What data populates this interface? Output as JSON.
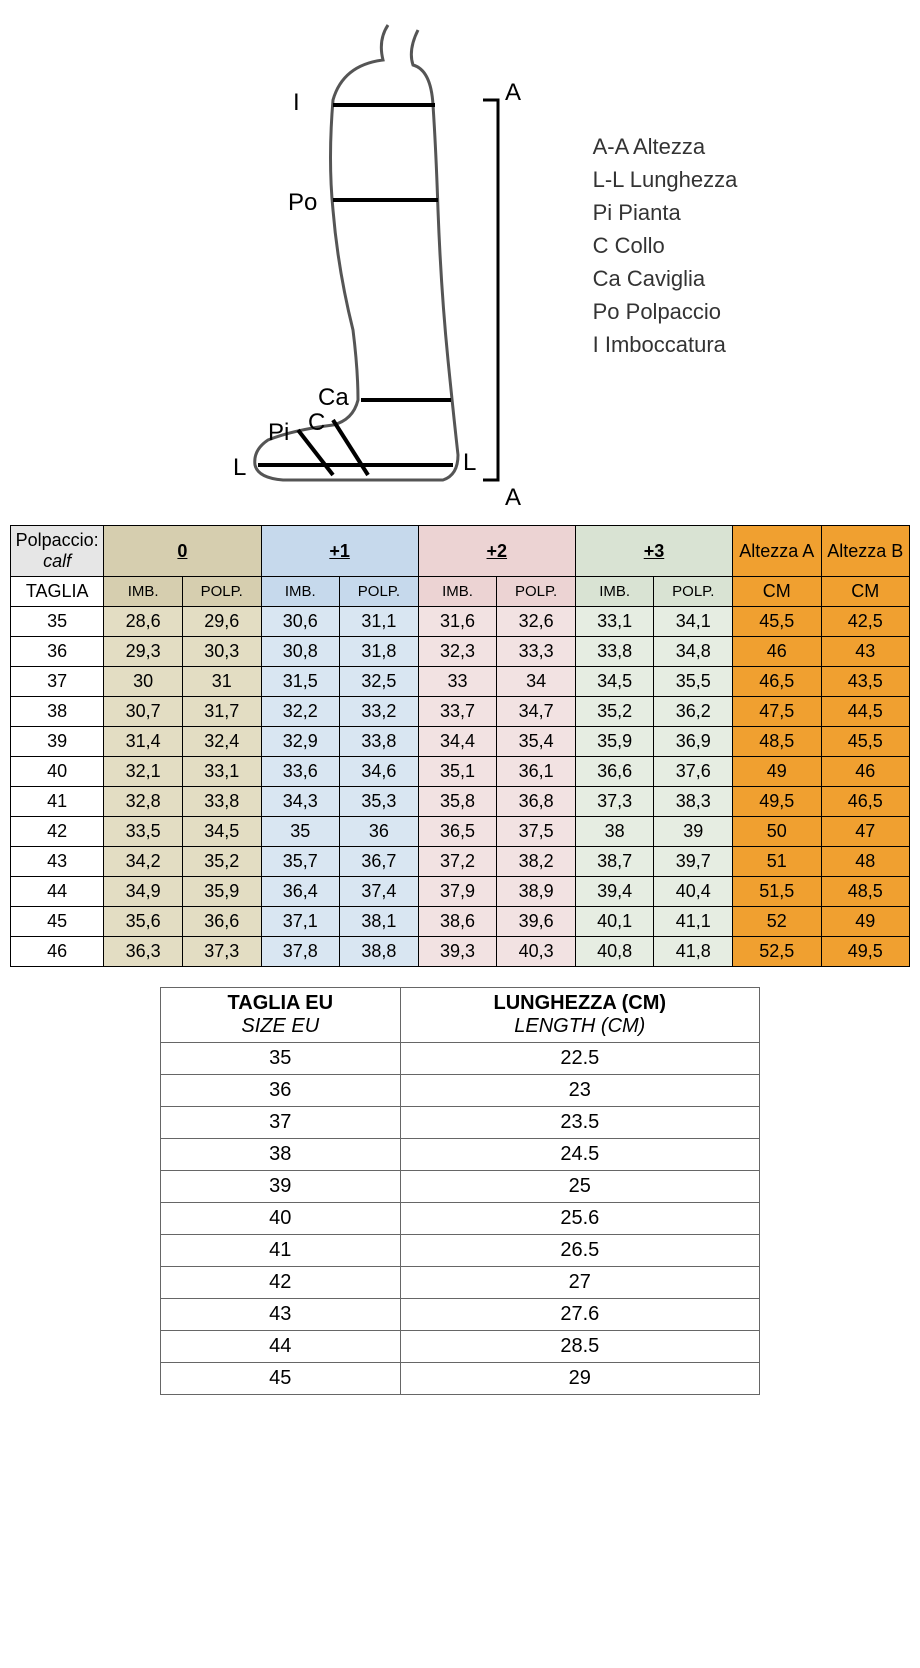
{
  "diagram": {
    "labels": {
      "I": "I",
      "A_top": "A",
      "Po": "Po",
      "Ca": "Ca",
      "C": "C",
      "Pi": "Pi",
      "L_left": "L",
      "L_right": "L",
      "A_bottom": "A"
    },
    "legend": [
      "A-A Altezza",
      "L-L Lunghezza",
      "Pi Pianta",
      "C Collo",
      "Ca Caviglia",
      "Po Polpaccio",
      "I Imboccatura"
    ]
  },
  "mainTable": {
    "header": {
      "polpaccio": "Polpaccio:",
      "calf": "calf",
      "taglia": "TAGLIA",
      "groups": [
        "0",
        "+1",
        "+2",
        "+3"
      ],
      "altezzaA": "Altezza A",
      "altezzaB": "Altezza B",
      "imb": "IMB.",
      "polp": "POLP.",
      "cm": "CM"
    },
    "colors": {
      "groupBg": [
        "#d6ceaf",
        "#c6d9ec",
        "#ecd3d3",
        "#d9e3d3"
      ],
      "cellBg": [
        "#e3ddc3",
        "#d9e6f2",
        "#f2e2e2",
        "#e6ede2"
      ],
      "orange": "#f0a030",
      "gray": "#e6e6e6"
    },
    "rows": [
      {
        "size": "35",
        "v": [
          "28,6",
          "29,6",
          "30,6",
          "31,1",
          "31,6",
          "32,6",
          "33,1",
          "34,1"
        ],
        "a": "45,5",
        "b": "42,5"
      },
      {
        "size": "36",
        "v": [
          "29,3",
          "30,3",
          "30,8",
          "31,8",
          "32,3",
          "33,3",
          "33,8",
          "34,8"
        ],
        "a": "46",
        "b": "43"
      },
      {
        "size": "37",
        "v": [
          "30",
          "31",
          "31,5",
          "32,5",
          "33",
          "34",
          "34,5",
          "35,5"
        ],
        "a": "46,5",
        "b": "43,5"
      },
      {
        "size": "38",
        "v": [
          "30,7",
          "31,7",
          "32,2",
          "33,2",
          "33,7",
          "34,7",
          "35,2",
          "36,2"
        ],
        "a": "47,5",
        "b": "44,5"
      },
      {
        "size": "39",
        "v": [
          "31,4",
          "32,4",
          "32,9",
          "33,8",
          "34,4",
          "35,4",
          "35,9",
          "36,9"
        ],
        "a": "48,5",
        "b": "45,5"
      },
      {
        "size": "40",
        "v": [
          "32,1",
          "33,1",
          "33,6",
          "34,6",
          "35,1",
          "36,1",
          "36,6",
          "37,6"
        ],
        "a": "49",
        "b": "46"
      },
      {
        "size": "41",
        "v": [
          "32,8",
          "33,8",
          "34,3",
          "35,3",
          "35,8",
          "36,8",
          "37,3",
          "38,3"
        ],
        "a": "49,5",
        "b": "46,5"
      },
      {
        "size": "42",
        "v": [
          "33,5",
          "34,5",
          "35",
          "36",
          "36,5",
          "37,5",
          "38",
          "39"
        ],
        "a": "50",
        "b": "47"
      },
      {
        "size": "43",
        "v": [
          "34,2",
          "35,2",
          "35,7",
          "36,7",
          "37,2",
          "38,2",
          "38,7",
          "39,7"
        ],
        "a": "51",
        "b": "48"
      },
      {
        "size": "44",
        "v": [
          "34,9",
          "35,9",
          "36,4",
          "37,4",
          "37,9",
          "38,9",
          "39,4",
          "40,4"
        ],
        "a": "51,5",
        "b": "48,5"
      },
      {
        "size": "45",
        "v": [
          "35,6",
          "36,6",
          "37,1",
          "38,1",
          "38,6",
          "39,6",
          "40,1",
          "41,1"
        ],
        "a": "52",
        "b": "49"
      },
      {
        "size": "46",
        "v": [
          "36,3",
          "37,3",
          "37,8",
          "38,8",
          "39,3",
          "40,3",
          "40,8",
          "41,8"
        ],
        "a": "52,5",
        "b": "49,5"
      }
    ]
  },
  "lengthTable": {
    "header": {
      "taglia": "TAGLIA EU",
      "size": "SIZE EU",
      "lunghezza": "LUNGHEZZA (CM)",
      "length": "LENGTH (CM)"
    },
    "rows": [
      [
        "35",
        "22.5"
      ],
      [
        "36",
        "23"
      ],
      [
        "37",
        "23.5"
      ],
      [
        "38",
        "24.5"
      ],
      [
        "39",
        "25"
      ],
      [
        "40",
        "25.6"
      ],
      [
        "41",
        "26.5"
      ],
      [
        "42",
        "27"
      ],
      [
        "43",
        "27.6"
      ],
      [
        "44",
        "28.5"
      ],
      [
        "45",
        "29"
      ]
    ]
  }
}
